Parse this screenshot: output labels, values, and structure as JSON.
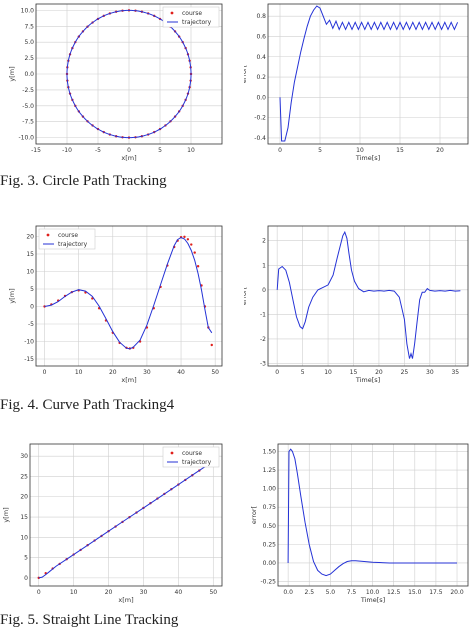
{
  "captions": {
    "fig3": "Fig. 3. Circle Path Tracking",
    "fig4": "Fig. 4. Curve Path Tracking4",
    "fig5": "Fig. 5. Straight Line Tracking"
  },
  "colors": {
    "course": "#e0201c",
    "trajectory": "#2432d6",
    "error": "#2432d6",
    "grid": "#cfcfcf"
  },
  "chart_data": [
    {
      "id": "c3l",
      "type": "scatter",
      "xlabel": "x[m]",
      "ylabel": "y[m]",
      "xlim": [
        -15,
        15
      ],
      "ylim": [
        -11,
        11
      ],
      "xticks": [
        -15,
        -10,
        -5,
        0,
        5,
        10
      ],
      "yticks": [
        -10.0,
        -7.5,
        -5.0,
        -2.5,
        0.0,
        2.5,
        5.0,
        7.5,
        10.0
      ],
      "ytick_decimals": 1,
      "grid": true,
      "legend": "top-right",
      "series": [
        {
          "name": "course",
          "kind": "dots",
          "shape": "circle",
          "center": [
            0,
            0
          ],
          "radius": 10,
          "n": 60
        },
        {
          "name": "trajectory",
          "kind": "line",
          "shape": "circle",
          "center": [
            0,
            0
          ],
          "radius": 10,
          "n": 160
        }
      ]
    },
    {
      "id": "c3r",
      "type": "line",
      "xlabel": "Time[s]",
      "ylabel": "error[",
      "xlim": [
        -1.5,
        23.5
      ],
      "ylim": [
        -0.46,
        0.92
      ],
      "xticks": [
        0,
        5,
        10,
        15,
        20
      ],
      "yticks": [
        -0.4,
        -0.2,
        0.0,
        0.2,
        0.4,
        0.6,
        0.8
      ],
      "ytick_decimals": 1,
      "grid": true,
      "series": [
        {
          "kind": "line",
          "x": [
            0,
            0.2,
            0.6,
            1.0,
            1.4,
            1.8,
            2.2,
            2.6,
            3.0,
            3.4,
            3.8,
            4.2,
            4.6,
            5.0,
            5.4,
            5.8,
            6.2,
            6.6,
            7.0,
            7.4,
            7.8,
            8.2,
            8.6,
            9.0,
            9.4,
            9.8,
            10.2,
            10.6,
            11.0,
            11.4,
            11.8,
            12.2,
            12.6,
            13.0,
            13.4,
            13.8,
            14.2,
            14.6,
            15.0,
            15.4,
            15.8,
            16.2,
            16.6,
            17.0,
            17.4,
            17.8,
            18.2,
            18.6,
            19.0,
            19.4,
            19.8,
            20.2,
            20.6,
            21.0,
            21.4,
            21.8,
            22.2
          ],
          "y": [
            0.0,
            -0.43,
            -0.43,
            -0.3,
            -0.05,
            0.15,
            0.3,
            0.45,
            0.58,
            0.7,
            0.8,
            0.86,
            0.9,
            0.88,
            0.8,
            0.72,
            0.76,
            0.68,
            0.75,
            0.67,
            0.74,
            0.67,
            0.74,
            0.67,
            0.74,
            0.67,
            0.74,
            0.67,
            0.74,
            0.67,
            0.74,
            0.67,
            0.74,
            0.67,
            0.74,
            0.67,
            0.74,
            0.67,
            0.74,
            0.67,
            0.74,
            0.67,
            0.74,
            0.67,
            0.74,
            0.67,
            0.74,
            0.67,
            0.74,
            0.67,
            0.74,
            0.67,
            0.74,
            0.67,
            0.74,
            0.67,
            0.74
          ]
        }
      ]
    },
    {
      "id": "c4l",
      "type": "scatter",
      "xlabel": "x[m]",
      "ylabel": "y[m]",
      "xlim": [
        -2.5,
        52
      ],
      "ylim": [
        -17,
        23
      ],
      "xticks": [
        0,
        10,
        20,
        30,
        40,
        50
      ],
      "yticks": [
        -15,
        -10,
        -5,
        0,
        5,
        10,
        15,
        20
      ],
      "ytick_decimals": 0,
      "grid": true,
      "legend": "top-left",
      "series": [
        {
          "name": "course",
          "kind": "dots",
          "x": [
            0,
            2,
            4,
            6,
            8,
            10,
            12,
            14,
            16,
            18,
            20,
            22,
            24,
            25,
            26,
            28,
            30,
            32,
            34,
            36,
            38,
            39,
            40,
            41,
            42,
            43,
            44,
            45,
            46,
            47,
            48,
            49
          ],
          "y": [
            0,
            0.6,
            1.7,
            3.0,
            4.1,
            4.6,
            4.0,
            2.3,
            -0.5,
            -4.0,
            -7.5,
            -10.4,
            -11.8,
            -12.0,
            -11.8,
            -10.0,
            -6.0,
            -0.5,
            5.6,
            11.7,
            17.0,
            18.8,
            19.8,
            19.9,
            19.2,
            17.7,
            15.4,
            11.5,
            6.0,
            0.0,
            -6.0,
            -11.0
          ]
        },
        {
          "name": "trajectory",
          "kind": "line",
          "x": [
            0,
            2,
            4,
            6,
            8,
            10,
            12,
            14,
            16,
            18,
            20,
            22,
            24,
            25,
            26,
            28,
            30,
            32,
            34,
            36,
            38,
            39,
            40,
            41,
            42,
            43,
            44,
            45,
            46,
            47,
            48,
            49
          ],
          "y": [
            0,
            0.4,
            1.4,
            2.9,
            4.1,
            4.8,
            4.4,
            2.9,
            0.1,
            -3.5,
            -7.2,
            -10.2,
            -11.9,
            -12.1,
            -11.6,
            -9.6,
            -5.3,
            0.3,
            6.3,
            12.1,
            17.4,
            19.1,
            19.7,
            19.3,
            18.0,
            16.0,
            13.2,
            9.4,
            4.7,
            -0.8,
            -6.0,
            -7.5
          ]
        }
      ]
    },
    {
      "id": "c4r",
      "type": "line",
      "xlabel": "Time[s]",
      "ylabel": "error[",
      "xlim": [
        -1.8,
        37.5
      ],
      "ylim": [
        -3.1,
        2.6
      ],
      "xticks": [
        0,
        5,
        10,
        15,
        20,
        25,
        30,
        35
      ],
      "yticks": [
        -3,
        -2,
        -1,
        0,
        1,
        2
      ],
      "ytick_decimals": 0,
      "grid": true,
      "series": [
        {
          "kind": "line",
          "x": [
            0,
            0.3,
            1.0,
            1.7,
            2.4,
            3.1,
            3.8,
            4.5,
            5.0,
            5.5,
            6.2,
            7.0,
            8.0,
            9.0,
            10.0,
            11.0,
            11.8,
            12.4,
            12.9,
            13.3,
            13.7,
            14.1,
            14.6,
            15.2,
            16.0,
            17.0,
            18.0,
            19.0,
            20.0,
            21.0,
            22.0,
            23.0,
            24.0,
            25.0,
            25.5,
            26.0,
            26.3,
            26.6,
            27.0,
            27.5,
            28.0,
            28.5,
            29.0,
            29.5,
            30.0,
            31.0,
            32.0,
            33.0,
            34.0,
            35.0,
            36.0
          ],
          "y": [
            0,
            0.85,
            0.95,
            0.8,
            0.3,
            -0.4,
            -1.1,
            -1.5,
            -1.58,
            -1.3,
            -0.7,
            -0.3,
            0.0,
            0.1,
            0.2,
            0.6,
            1.3,
            1.8,
            2.2,
            2.35,
            2.1,
            1.5,
            0.8,
            0.35,
            0.05,
            -0.08,
            -0.02,
            -0.05,
            -0.03,
            -0.05,
            -0.02,
            -0.05,
            -0.3,
            -1.2,
            -2.2,
            -2.8,
            -2.6,
            -2.8,
            -2.2,
            -1.3,
            -0.4,
            -0.1,
            -0.1,
            0.05,
            -0.02,
            -0.05,
            -0.03,
            -0.05,
            -0.02,
            -0.05,
            -0.04
          ]
        }
      ]
    },
    {
      "id": "c5l",
      "type": "scatter",
      "xlabel": "x[m]",
      "ylabel": "y[m]",
      "xlim": [
        -2.5,
        52.5
      ],
      "ylim": [
        -2,
        33
      ],
      "xticks": [
        0,
        10,
        20,
        30,
        40,
        50
      ],
      "yticks": [
        0,
        5,
        10,
        15,
        20,
        25,
        30
      ],
      "ytick_decimals": 0,
      "grid": true,
      "legend": "top-right",
      "series": [
        {
          "name": "course",
          "kind": "dots",
          "x": [
            0,
            2,
            4,
            6,
            8,
            10,
            12,
            14,
            16,
            18,
            20,
            22,
            24,
            26,
            28,
            30,
            32,
            34,
            36,
            38,
            40,
            42,
            44,
            46,
            48,
            50
          ],
          "y": [
            0,
            1.15,
            2.3,
            3.45,
            4.6,
            5.75,
            6.9,
            8.05,
            9.2,
            10.35,
            11.5,
            12.65,
            13.8,
            14.95,
            16.1,
            17.25,
            18.4,
            19.55,
            20.7,
            21.85,
            23.0,
            24.15,
            25.3,
            26.45,
            27.6,
            28.75
          ]
        },
        {
          "name": "trajectory",
          "kind": "line",
          "x": [
            0,
            1,
            2,
            3,
            5,
            8,
            12,
            16,
            20,
            25,
            30,
            35,
            40,
            45,
            50
          ],
          "y": [
            0,
            0.2,
            0.8,
            1.5,
            2.9,
            4.6,
            6.9,
            9.2,
            11.5,
            14.4,
            17.25,
            20.1,
            23.0,
            25.9,
            28.75
          ]
        }
      ]
    },
    {
      "id": "c5r",
      "type": "line",
      "xlabel": "Time[s]",
      "ylabel": "error[",
      "xlim": [
        -1.2,
        21.3
      ],
      "ylim": [
        -0.31,
        1.6
      ],
      "xticks": [
        0.0,
        2.5,
        5.0,
        7.5,
        10.0,
        12.5,
        15.0,
        17.5,
        20.0
      ],
      "yticks": [
        -0.25,
        0.0,
        0.25,
        0.5,
        0.75,
        1.0,
        1.25,
        1.5
      ],
      "xtick_decimals": 1,
      "ytick_decimals": 2,
      "grid": true,
      "series": [
        {
          "kind": "line",
          "x": [
            0,
            0.1,
            0.3,
            0.5,
            0.8,
            1.1,
            1.5,
            2.0,
            2.5,
            3.0,
            3.5,
            4.0,
            4.5,
            5.0,
            5.5,
            6.0,
            6.5,
            7.0,
            7.5,
            8.0,
            9.0,
            10.0,
            12.0,
            14.0,
            16.0,
            18.0,
            20.0
          ],
          "y": [
            0,
            1.5,
            1.53,
            1.5,
            1.4,
            1.2,
            0.9,
            0.55,
            0.25,
            0.02,
            -0.1,
            -0.15,
            -0.17,
            -0.15,
            -0.1,
            -0.05,
            -0.01,
            0.02,
            0.03,
            0.03,
            0.02,
            0.01,
            0.0,
            0.0,
            0.0,
            0.0,
            0.0
          ]
        }
      ]
    }
  ]
}
